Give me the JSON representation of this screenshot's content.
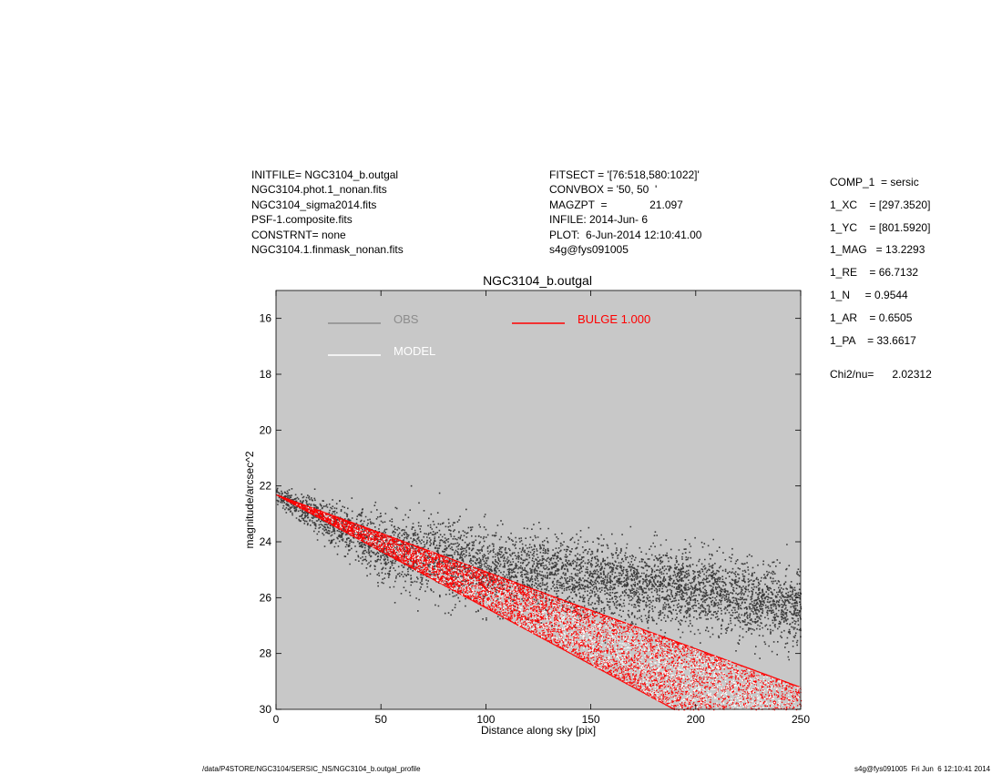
{
  "header_left": [
    "INITFILE= NGC3104_b.outgal",
    "NGC3104.phot.1_nonan.fits",
    "NGC3104_sigma2014.fits",
    "PSF-1.composite.fits",
    "CONSTRNT= none",
    "NGC3104.1.finmask_nonan.fits"
  ],
  "header_center": [
    "FITSECT = '[76:518,580:1022]'",
    "CONVBOX = '50, 50  '",
    "MAGZPT  =              21.097",
    "INFILE: 2014-Jun- 6",
    "PLOT:  6-Jun-2014 12:10:41.00",
    "s4g@fys091005"
  ],
  "params": [
    "COMP_1  = sersic",
    "1_XC    = [297.3520]",
    "1_YC    = [801.5920]",
    "1_MAG   = 13.2293",
    "1_RE    = 66.7132",
    "1_N     = 0.9544",
    "1_AR    = 0.6505",
    "1_PA    = 33.6617"
  ],
  "chi2": "Chi2/nu=      2.02312",
  "footer_left": "/data/P4STORE/NGC3104/SERSIC_NS/NGC3104_b.outgal_profile",
  "footer_right": "s4g@fys091005  Fri Jun  6 12:10:41 2014",
  "chart_data": {
    "type": "scatter",
    "title": "NGC3104_b.outgal",
    "xlabel": "Distance along sky [pix]",
    "ylabel": "magnitude/arcsec^2",
    "xlim": [
      0,
      250
    ],
    "ylim": [
      30,
      15
    ],
    "y_inverted": true,
    "x_ticks": [
      0,
      50,
      100,
      150,
      200,
      250
    ],
    "y_ticks": [
      16,
      18,
      20,
      22,
      24,
      26,
      28,
      30
    ],
    "background": "#c8c8c8",
    "legend": [
      {
        "label": "OBS",
        "color": "#8c8c8c"
      },
      {
        "label": "MODEL",
        "color": "#ffffff"
      },
      {
        "label": "BULGE  1.000",
        "color": "#ff0000"
      }
    ],
    "series": [
      {
        "name": "OBS",
        "color": "#3c3c3c",
        "trend": {
          "x": [
            0,
            50,
            100,
            150,
            200,
            250
          ],
          "y": [
            22.3,
            24.2,
            24.9,
            25.3,
            25.7,
            26.4
          ]
        },
        "scatter_range_mag": 3.0
      },
      {
        "name": "MODEL",
        "color": "#ffffff",
        "envelope_upper": {
          "x": [
            0,
            250
          ],
          "y": [
            22.3,
            29.2
          ]
        },
        "envelope_lower": {
          "x": [
            0,
            190
          ],
          "y": [
            22.3,
            30.0
          ]
        }
      },
      {
        "name": "BULGE  1.000",
        "color": "#ff0000",
        "envelope_upper": {
          "x": [
            0,
            250
          ],
          "y": [
            22.3,
            29.2
          ]
        },
        "envelope_lower": {
          "x": [
            0,
            190
          ],
          "y": [
            22.3,
            30.0
          ]
        }
      }
    ]
  }
}
